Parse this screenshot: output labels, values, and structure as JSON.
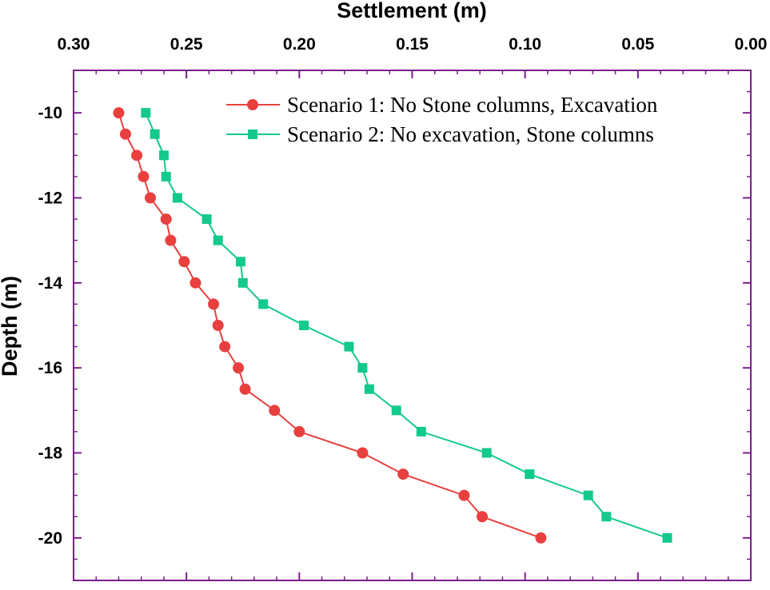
{
  "chart_data": {
    "type": "line",
    "title": "",
    "xlabel": "Settlement (m)",
    "ylabel": "Depth (m)",
    "x_axis_position": "top",
    "x_reversed": true,
    "xlim": [
      0.3,
      0.0
    ],
    "ylim": [
      -21,
      -9
    ],
    "x_ticks": [
      0.3,
      0.25,
      0.2,
      0.15,
      0.1,
      0.05,
      0.0
    ],
    "x_tick_labels": [
      "0.30",
      "0.25",
      "0.20",
      "0.15",
      "0.10",
      "0.05",
      "0.00"
    ],
    "y_ticks": [
      -10,
      -12,
      -14,
      -16,
      -18,
      -20
    ],
    "y_tick_labels": [
      "-10",
      "-12",
      "-14",
      "-16",
      "-18",
      "-20"
    ],
    "grid": false,
    "legend_position": "top-right",
    "axis_color": "#7b1f8c",
    "series": [
      {
        "name": "Scenario 2: No excavation, Stone columns",
        "color": "#13c98b",
        "marker": "square",
        "points": [
          [
            0.268,
            -10
          ],
          [
            0.264,
            -10.5
          ],
          [
            0.26,
            -11
          ],
          [
            0.259,
            -11.5
          ],
          [
            0.254,
            -12
          ],
          [
            0.241,
            -12.5
          ],
          [
            0.236,
            -13
          ],
          [
            0.226,
            -13.5
          ],
          [
            0.225,
            -14
          ],
          [
            0.216,
            -14.5
          ],
          [
            0.198,
            -15
          ],
          [
            0.178,
            -15.5
          ],
          [
            0.172,
            -16
          ],
          [
            0.169,
            -16.5
          ],
          [
            0.157,
            -17
          ],
          [
            0.146,
            -17.5
          ],
          [
            0.117,
            -18
          ],
          [
            0.098,
            -18.5
          ],
          [
            0.072,
            -19
          ],
          [
            0.064,
            -19.5
          ],
          [
            0.037,
            -20
          ]
        ]
      },
      {
        "name": "Scenario 1: No Stone columns, Excavation",
        "color": "#e8403f",
        "marker": "circle",
        "points": [
          [
            0.28,
            -10
          ],
          [
            0.277,
            -10.5
          ],
          [
            0.272,
            -11
          ],
          [
            0.269,
            -11.5
          ],
          [
            0.266,
            -12
          ],
          [
            0.259,
            -12.5
          ],
          [
            0.257,
            -13
          ],
          [
            0.251,
            -13.5
          ],
          [
            0.246,
            -14
          ],
          [
            0.238,
            -14.5
          ],
          [
            0.236,
            -15
          ],
          [
            0.233,
            -15.5
          ],
          [
            0.227,
            -16
          ],
          [
            0.224,
            -16.5
          ],
          [
            0.211,
            -17
          ],
          [
            0.2,
            -17.5
          ],
          [
            0.172,
            -18
          ],
          [
            0.154,
            -18.5
          ],
          [
            0.127,
            -19
          ],
          [
            0.119,
            -19.5
          ],
          [
            0.093,
            -20
          ]
        ]
      }
    ]
  }
}
